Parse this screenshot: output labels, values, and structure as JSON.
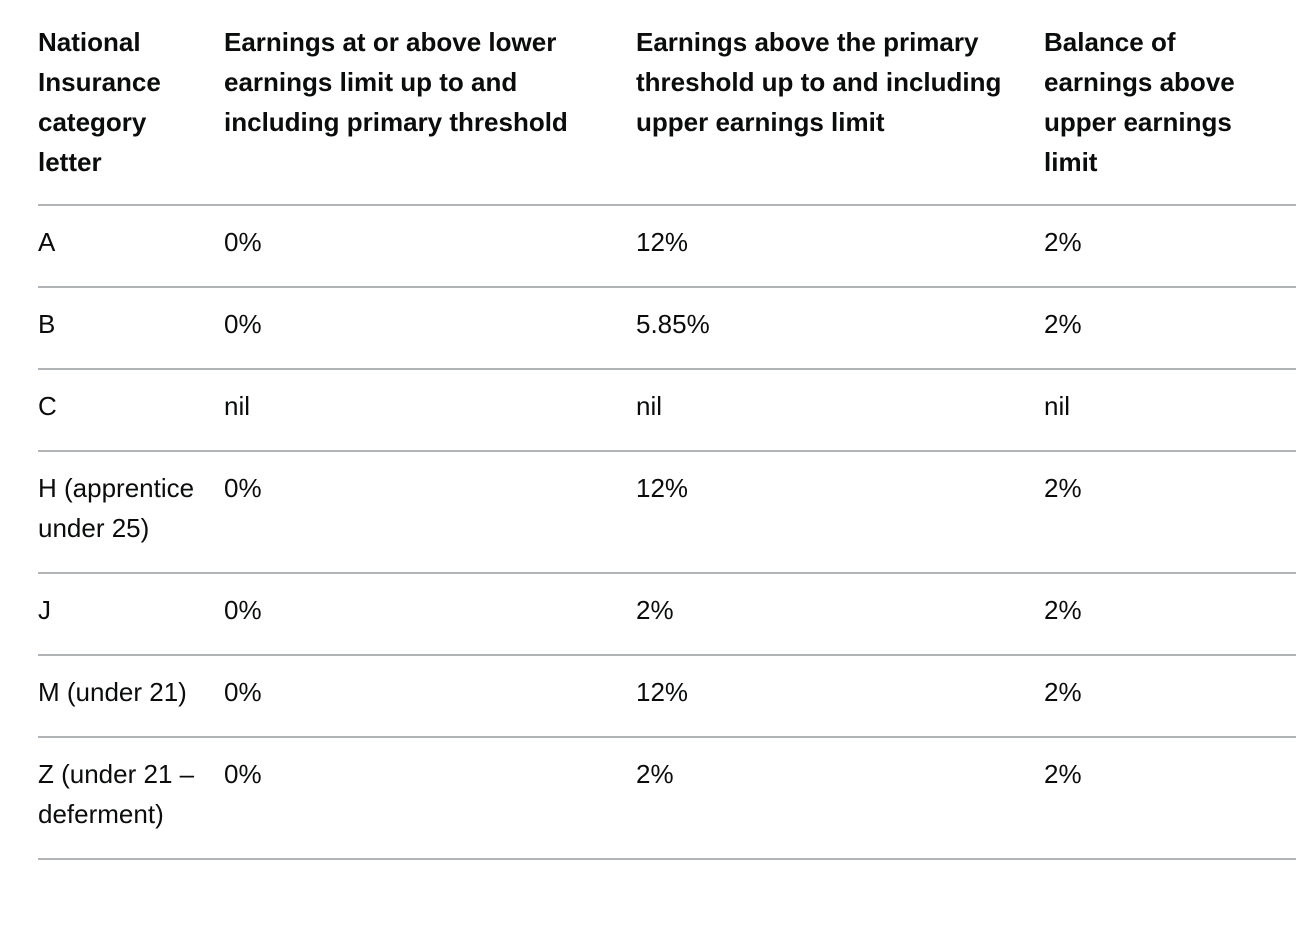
{
  "table": {
    "headers": [
      "National Insurance category letter",
      "Earnings at or above lower earnings limit up to and including primary threshold",
      "Earnings above the primary threshold up to and including upper earnings limit",
      "Balance of earnings above upper earnings limit"
    ],
    "rows": [
      [
        "A",
        "0%",
        "12%",
        "2%"
      ],
      [
        "B",
        "0%",
        "5.85%",
        "2%"
      ],
      [
        "C",
        "nil",
        "nil",
        "nil"
      ],
      [
        "H (apprentice under 25)",
        "0%",
        "12%",
        "2%"
      ],
      [
        "J",
        "0%",
        "2%",
        "2%"
      ],
      [
        "M (under 21)",
        "0%",
        "12%",
        "2%"
      ],
      [
        "Z (under 21 – deferment)",
        "0%",
        "2%",
        "2%"
      ]
    ]
  }
}
